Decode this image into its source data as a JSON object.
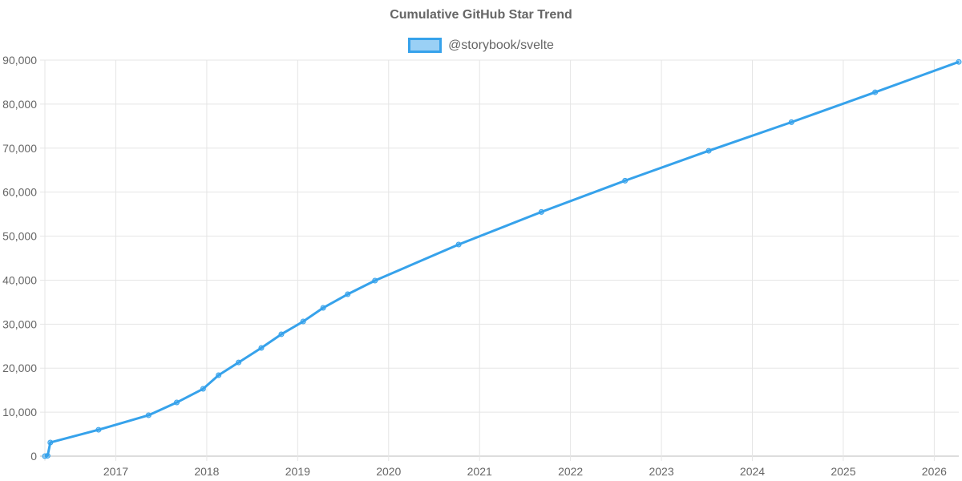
{
  "chart_data": {
    "type": "line",
    "title": "Cumulative GitHub Star Trend",
    "xlabel": "",
    "ylabel": "",
    "legend_position": "top",
    "grid": true,
    "xlim": [
      2016.22,
      2026.27
    ],
    "ylim": [
      0,
      90000
    ],
    "x_ticks": [
      "2017",
      "2018",
      "2019",
      "2020",
      "2021",
      "2022",
      "2023",
      "2024",
      "2025",
      "2026"
    ],
    "y_ticks": [
      "0",
      "10,000",
      "20,000",
      "30,000",
      "40,000",
      "50,000",
      "60,000",
      "70,000",
      "80,000",
      "90,000"
    ],
    "series": [
      {
        "name": "@storybook/svelte",
        "color": "#36a2eb",
        "x": [
          2016.22,
          2016.25,
          2016.28,
          2016.81,
          2017.36,
          2017.67,
          2017.96,
          2018.13,
          2018.35,
          2018.6,
          2018.82,
          2019.06,
          2019.28,
          2019.55,
          2019.85,
          2020.77,
          2021.68,
          2022.6,
          2023.52,
          2024.43,
          2025.35,
          2026.27
        ],
        "values": [
          0,
          100,
          3100,
          6000,
          9300,
          12200,
          15300,
          18400,
          21300,
          24600,
          27700,
          30600,
          33700,
          36800,
          39900,
          48100,
          55500,
          62600,
          69400,
          75900,
          82700,
          89600
        ]
      }
    ]
  }
}
